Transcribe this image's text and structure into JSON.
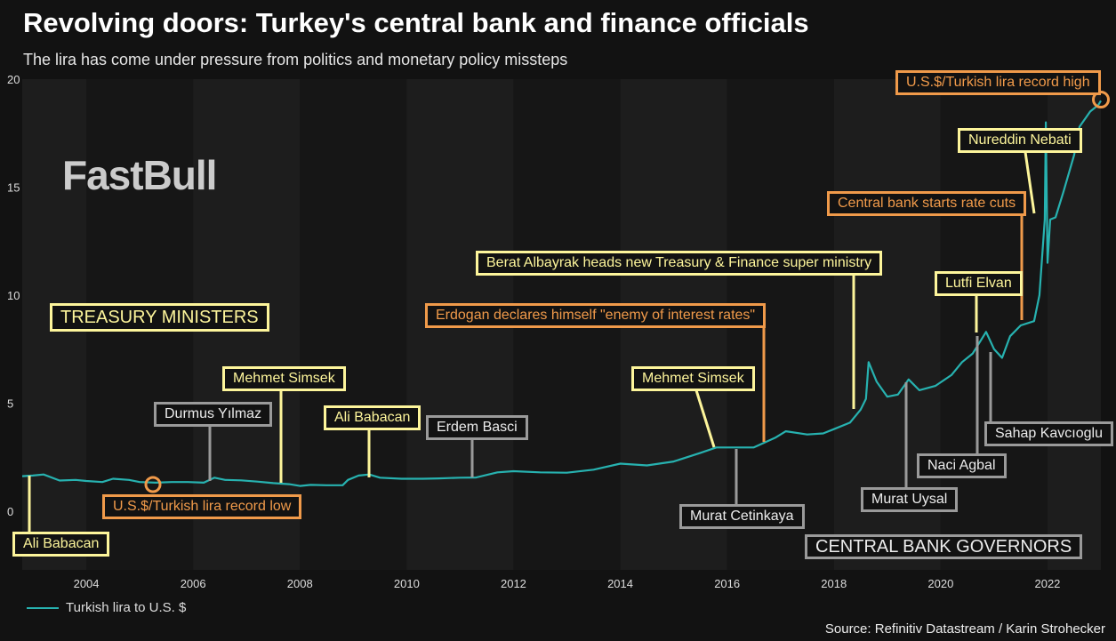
{
  "title": "Revolving doors: Turkey's central bank and finance officials",
  "subtitle": "The lira has come under pressure from politics and monetary policy missteps",
  "legend": "Turkish lira to U.S. $",
  "source": "Source: Refinitiv Datastream / Karin Strohecker",
  "watermark": "FastBull",
  "colors": {
    "line": "#27b2b0",
    "minister": "#fdf59b",
    "governor": "#9a9a9a",
    "event": "#f09a4a",
    "background": "#121212"
  },
  "annotations": {
    "treasury_header": "TREASURY MINISTERS",
    "governors_header": "CENTRAL BANK GOVERNORS",
    "ali_babacan_1": "Ali Babacan",
    "durmus_yilmaz": "Durmus Yılmaz",
    "mehmet_simsek_1": "Mehmet Simsek",
    "record_low": "U.S.$/Turkish lira record low",
    "ali_babacan_2": "Ali Babacan",
    "erdem_basci": "Erdem Basci",
    "mehmet_simsek_2": "Mehmet Simsek",
    "murat_cetinkaya": "Murat Cetinkaya",
    "erdogan": "Erdogan declares himself \"enemy of interest rates\"",
    "berat_albayrak": "Berat Albayrak heads new Treasury & Finance super ministry",
    "murat_uysal": "Murat Uysal",
    "naci_agbal": "Naci Agbal",
    "lutfi_elvan": "Lutfi Elvan",
    "sahap_kavcioglu": "Sahap Kavcıoglu",
    "rate_cuts": "Central bank starts rate cuts",
    "nureddin_nebati": "Nureddin Nebati",
    "record_high": "U.S.$/Turkish lira record high"
  },
  "chart_data": {
    "type": "line",
    "title": "Revolving doors: Turkey's central bank and finance officials",
    "xlabel": "",
    "ylabel": "",
    "xlim": [
      2002.8,
      2023.0
    ],
    "ylim": [
      -1.9,
      20
    ],
    "yticks": [
      0,
      5,
      10,
      15,
      20
    ],
    "xticks": [
      2004,
      2006,
      2008,
      2010,
      2012,
      2014,
      2016,
      2018,
      2020,
      2022
    ],
    "grid": false,
    "legend_position": "bottom-left",
    "series": [
      {
        "name": "Turkish lira to U.S. $",
        "x": [
          2002.8,
          2003.0,
          2003.2,
          2003.5,
          2003.8,
          2004.0,
          2004.3,
          2004.5,
          2004.8,
          2005.0,
          2005.3,
          2005.6,
          2005.9,
          2006.2,
          2006.4,
          2006.6,
          2006.9,
          2007.2,
          2007.5,
          2007.8,
          2008.0,
          2008.2,
          2008.5,
          2008.8,
          2008.9,
          2009.1,
          2009.3,
          2009.5,
          2009.9,
          2010.3,
          2010.6,
          2011.0,
          2011.3,
          2011.7,
          2012.0,
          2012.5,
          2013.0,
          2013.5,
          2014.0,
          2014.5,
          2015.0,
          2015.5,
          2015.8,
          2016.0,
          2016.5,
          2016.9,
          2017.1,
          2017.5,
          2017.8,
          2018.0,
          2018.3,
          2018.5,
          2018.6,
          2018.65,
          2018.8,
          2019.0,
          2019.2,
          2019.4,
          2019.6,
          2019.9,
          2020.2,
          2020.4,
          2020.6,
          2020.85,
          2021.0,
          2021.15,
          2021.3,
          2021.5,
          2021.75,
          2021.85,
          2021.95,
          2021.97,
          2022.0,
          2022.05,
          2022.15,
          2022.3,
          2022.5,
          2022.6,
          2022.8,
          2022.95,
          2023.0
        ],
        "values": [
          1.62,
          1.65,
          1.7,
          1.42,
          1.45,
          1.4,
          1.35,
          1.5,
          1.45,
          1.35,
          1.32,
          1.35,
          1.35,
          1.32,
          1.55,
          1.45,
          1.43,
          1.37,
          1.3,
          1.25,
          1.17,
          1.22,
          1.2,
          1.2,
          1.45,
          1.65,
          1.7,
          1.55,
          1.5,
          1.5,
          1.52,
          1.55,
          1.56,
          1.8,
          1.85,
          1.8,
          1.78,
          1.92,
          2.2,
          2.12,
          2.3,
          2.7,
          2.95,
          2.95,
          2.95,
          3.4,
          3.7,
          3.55,
          3.6,
          3.8,
          4.1,
          4.7,
          5.2,
          6.9,
          6.0,
          5.3,
          5.4,
          6.1,
          5.6,
          5.8,
          6.3,
          6.9,
          7.3,
          8.3,
          7.5,
          7.1,
          8.1,
          8.6,
          8.8,
          10.0,
          13.5,
          18.0,
          11.5,
          13.5,
          13.6,
          14.8,
          16.5,
          17.8,
          18.5,
          18.8,
          19.0
        ]
      }
    ]
  }
}
